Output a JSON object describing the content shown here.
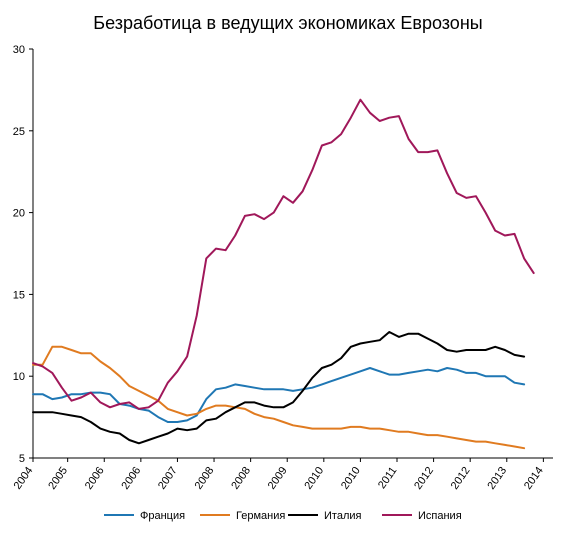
{
  "chart_data": {
    "type": "line",
    "title": "Безработица в ведущих экономиках Еврозоны",
    "xlabel": "",
    "ylabel": "",
    "ylim": [
      5,
      30
    ],
    "y_ticks": [
      5,
      10,
      15,
      20,
      25,
      30
    ],
    "grid": false,
    "legend_position": "bottom",
    "x": [
      2004,
      2004.25,
      2004.5,
      2004.75,
      2005,
      2005.25,
      2005.5,
      2005.75,
      2006,
      2006.25,
      2006.5,
      2006.75,
      2007,
      2007.25,
      2007.5,
      2007.75,
      2008,
      2008.25,
      2008.5,
      2008.75,
      2009,
      2009.25,
      2009.5,
      2009.75,
      2010,
      2010.25,
      2010.5,
      2010.75,
      2011,
      2011.25,
      2011.5,
      2011.75,
      2012,
      2012.25,
      2012.5,
      2012.75,
      2013,
      2013.25,
      2013.5,
      2013.75,
      2014,
      2014.25,
      2014.5,
      2014.75,
      2015,
      2015.25,
      2015.5,
      2015.75,
      2016,
      2016.25,
      2016.5,
      2016.75,
      2017,
      2017.25,
      2017.5
    ],
    "x_tick_labels": [
      {
        "x": 2004,
        "label": "2004"
      },
      {
        "x": 2004.9,
        "label": "2005"
      },
      {
        "x": 2005.85,
        "label": "2006"
      },
      {
        "x": 2006.8,
        "label": "2006"
      },
      {
        "x": 2007.75,
        "label": "2007"
      },
      {
        "x": 2008.7,
        "label": "2008"
      },
      {
        "x": 2009.65,
        "label": "2008"
      },
      {
        "x": 2010.6,
        "label": "2009"
      },
      {
        "x": 2011.55,
        "label": "2010"
      },
      {
        "x": 2012.5,
        "label": "2010"
      },
      {
        "x": 2013.45,
        "label": "2011"
      },
      {
        "x": 2014.4,
        "label": "2012"
      },
      {
        "x": 2015.35,
        "label": "2012"
      },
      {
        "x": 2016.3,
        "label": "2013"
      },
      {
        "x": 2017.25,
        "label": "2014"
      }
    ],
    "series": [
      {
        "name": "Франция",
        "color": "#1f77b4",
        "values": [
          8.9,
          8.9,
          8.6,
          8.7,
          8.9,
          8.9,
          9.0,
          9.0,
          8.9,
          8.3,
          8.2,
          8.0,
          7.9,
          7.5,
          7.2,
          7.2,
          7.3,
          7.6,
          8.6,
          9.2,
          9.3,
          9.5,
          9.4,
          9.3,
          9.2,
          9.2,
          9.2,
          9.1,
          9.2,
          9.3,
          9.5,
          9.7,
          9.9,
          10.1,
          10.3,
          10.5,
          10.3,
          10.1,
          10.1,
          10.2,
          10.3,
          10.4,
          10.3,
          10.5,
          10.4,
          10.2,
          10.2,
          10.0,
          10.0,
          10.0,
          9.6,
          9.5,
          null,
          null,
          null
        ]
      },
      {
        "name": "Германия",
        "color": "#e07b20",
        "values": [
          10.7,
          10.7,
          11.8,
          11.8,
          11.6,
          11.4,
          11.4,
          10.9,
          10.5,
          10.0,
          9.4,
          9.1,
          8.8,
          8.5,
          8.0,
          7.8,
          7.6,
          7.7,
          8.0,
          8.2,
          8.2,
          8.1,
          8.0,
          7.7,
          7.5,
          7.4,
          7.2,
          7.0,
          6.9,
          6.8,
          6.8,
          6.8,
          6.8,
          6.9,
          6.9,
          6.8,
          6.8,
          6.7,
          6.6,
          6.6,
          6.5,
          6.4,
          6.4,
          6.3,
          6.2,
          6.1,
          6.0,
          6.0,
          5.9,
          5.8,
          5.7,
          5.6,
          null,
          null,
          null
        ]
      },
      {
        "name": "Италия",
        "color": "#000000",
        "values": [
          7.8,
          7.8,
          7.8,
          7.7,
          7.6,
          7.5,
          7.2,
          6.8,
          6.6,
          6.5,
          6.1,
          5.9,
          6.1,
          6.3,
          6.5,
          6.8,
          6.7,
          6.8,
          7.3,
          7.4,
          7.8,
          8.1,
          8.4,
          8.4,
          8.2,
          8.1,
          8.1,
          8.4,
          9.1,
          9.9,
          10.5,
          10.7,
          11.1,
          11.8,
          12.0,
          12.1,
          12.2,
          12.7,
          12.4,
          12.6,
          12.6,
          12.3,
          12.0,
          11.6,
          11.5,
          11.6,
          11.6,
          11.6,
          11.8,
          11.6,
          11.3,
          11.2,
          null,
          null,
          null
        ]
      },
      {
        "name": "Испания",
        "color": "#a0185a",
        "values": [
          10.8,
          10.6,
          10.2,
          9.3,
          8.5,
          8.7,
          9.0,
          8.4,
          8.1,
          8.3,
          8.4,
          8.0,
          8.1,
          8.5,
          9.6,
          10.3,
          11.2,
          13.7,
          17.2,
          17.8,
          17.7,
          18.6,
          19.8,
          19.9,
          19.6,
          20.0,
          21.0,
          20.6,
          21.3,
          22.6,
          24.1,
          24.3,
          24.8,
          25.8,
          26.9,
          26.1,
          25.6,
          25.8,
          25.9,
          24.5,
          23.7,
          23.7,
          23.8,
          22.4,
          21.2,
          20.9,
          21.0,
          20.0,
          18.9,
          18.6,
          18.7,
          17.2,
          16.3,
          null,
          null
        ]
      }
    ]
  }
}
